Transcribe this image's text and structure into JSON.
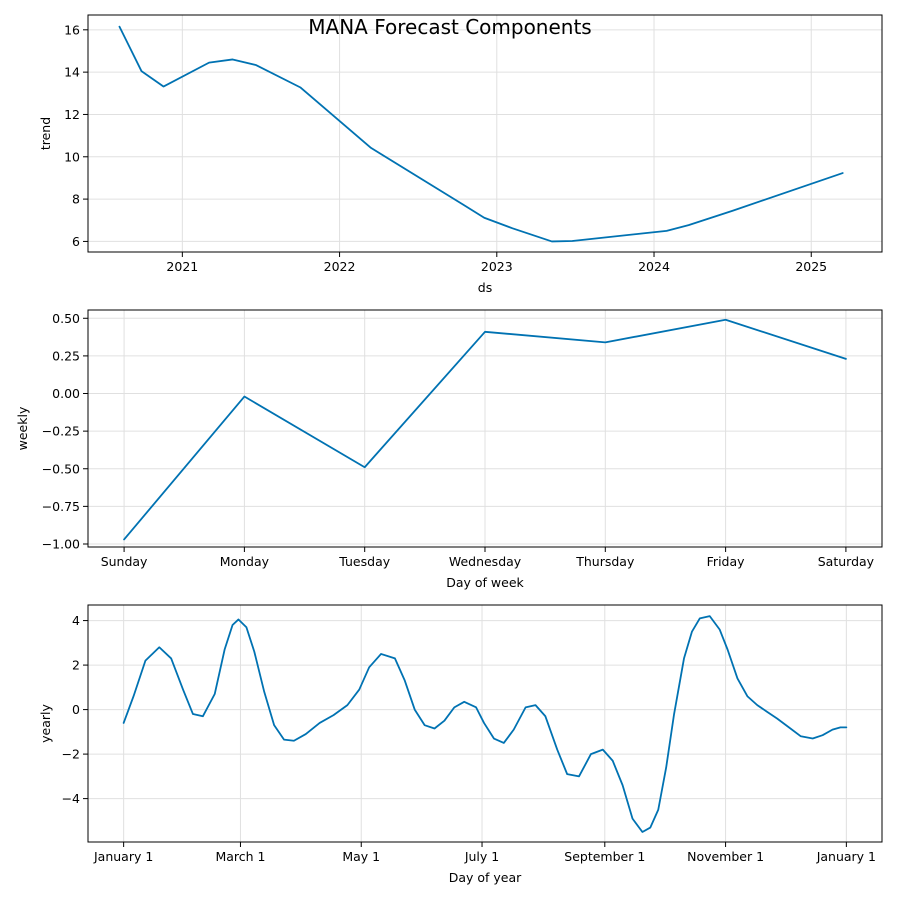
{
  "title": "MANA Forecast Components",
  "colors": {
    "line": "#0072B2",
    "grid": "#e0e0e0",
    "frame": "#000000"
  },
  "chart_data": [
    {
      "type": "line",
      "name": "trend-panel",
      "xlabel": "ds",
      "ylabel": "trend",
      "x_is_year": true,
      "xlim": [
        2020.4,
        2025.45
      ],
      "ylim": [
        5.5,
        16.7
      ],
      "xticks": [
        2021,
        2022,
        2023,
        2024,
        2025
      ],
      "xtick_labels": [
        "2021",
        "2022",
        "2023",
        "2024",
        "2025"
      ],
      "yticks": [
        6,
        8,
        10,
        12,
        14,
        16
      ],
      "ytick_labels": [
        "6",
        "8",
        "10",
        "12",
        "14",
        "16"
      ],
      "grid": true,
      "x": [
        2020.6,
        2020.74,
        2020.88,
        2021.17,
        2021.32,
        2021.47,
        2021.75,
        2022.2,
        2022.79,
        2022.92,
        2023.1,
        2023.35,
        2023.48,
        2023.93,
        2024.08,
        2024.22,
        2024.5,
        2025.2
      ],
      "y": [
        16.15,
        14.05,
        13.32,
        14.45,
        14.6,
        14.33,
        13.28,
        10.42,
        7.72,
        7.12,
        6.62,
        6.0,
        6.02,
        6.38,
        6.5,
        6.77,
        7.45,
        9.23
      ]
    },
    {
      "type": "line",
      "name": "weekly-panel",
      "xlabel": "Day of week",
      "ylabel": "weekly",
      "categories": [
        "Sunday",
        "Monday",
        "Tuesday",
        "Wednesday",
        "Thursday",
        "Friday",
        "Saturday"
      ],
      "values": [
        -0.97,
        -0.02,
        -0.49,
        0.41,
        0.34,
        0.49,
        0.23
      ],
      "xlim": [
        -0.3,
        6.3
      ],
      "ylim": [
        -1.02,
        0.555
      ],
      "yticks": [
        -1.0,
        -0.75,
        -0.5,
        -0.25,
        0.0,
        0.25,
        0.5
      ],
      "ytick_labels": [
        "−1.00",
        "−0.75",
        "−0.50",
        "−0.25",
        "0.00",
        "0.25",
        "0.50"
      ],
      "grid": true
    },
    {
      "type": "line",
      "name": "yearly-panel",
      "xlabel": "Day of year",
      "ylabel": "yearly",
      "xlim": [
        -18,
        383
      ],
      "ylim": [
        -5.95,
        4.7
      ],
      "xticks": [
        0,
        59,
        120,
        181,
        243,
        304,
        365
      ],
      "xtick_labels": [
        "January 1",
        "March 1",
        "May 1",
        "July 1",
        "September 1",
        "November 1",
        "January 1"
      ],
      "yticks": [
        -4,
        -2,
        0,
        2,
        4
      ],
      "ytick_labels": [
        "−4",
        "−2",
        "0",
        "2",
        "4"
      ],
      "grid": true,
      "x": [
        0,
        5,
        11,
        18,
        24,
        30,
        35,
        40,
        46,
        51,
        55,
        58,
        62,
        66,
        71,
        76,
        81,
        86,
        92,
        99,
        106,
        113,
        119,
        124,
        130,
        137,
        142,
        147,
        152,
        157,
        162,
        167,
        172,
        178,
        182,
        187,
        192,
        197,
        203,
        208,
        213,
        219,
        224,
        230,
        236,
        242,
        247,
        252,
        257,
        262,
        266,
        270,
        274,
        278,
        283,
        287,
        291,
        296,
        301,
        305,
        310,
        315,
        320,
        325,
        330,
        336,
        342,
        348,
        353,
        358,
        362,
        365
      ],
      "y": [
        -0.6,
        0.6,
        2.2,
        2.8,
        2.3,
        0.9,
        -0.2,
        -0.3,
        0.7,
        2.7,
        3.8,
        4.05,
        3.7,
        2.6,
        0.8,
        -0.7,
        -1.35,
        -1.4,
        -1.1,
        -0.6,
        -0.25,
        0.2,
        0.9,
        1.9,
        2.5,
        2.3,
        1.3,
        0.0,
        -0.7,
        -0.85,
        -0.5,
        0.1,
        0.35,
        0.1,
        -0.6,
        -1.3,
        -1.5,
        -0.9,
        0.1,
        0.2,
        -0.3,
        -1.8,
        -2.9,
        -3.0,
        -2.0,
        -1.8,
        -2.3,
        -3.4,
        -4.9,
        -5.5,
        -5.3,
        -4.5,
        -2.6,
        -0.2,
        2.3,
        3.5,
        4.1,
        4.2,
        3.6,
        2.7,
        1.4,
        0.6,
        0.2,
        -0.1,
        -0.4,
        -0.8,
        -1.2,
        -1.3,
        -1.15,
        -0.9,
        -0.8,
        -0.8
      ]
    }
  ]
}
